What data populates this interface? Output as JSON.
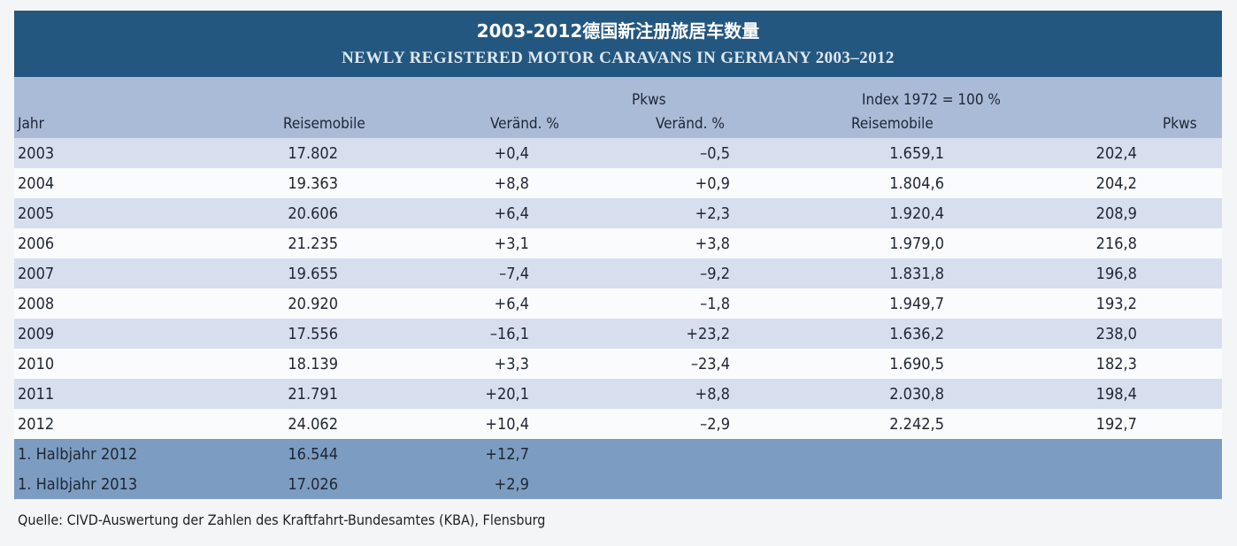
{
  "title_cn": "2003-2012德国新注册旅居车数量",
  "title_en": "NEWLY REGISTERED MOTOR CARAVANS IN GERMANY 2003–2012",
  "header": {
    "group_pkws": "Pkws",
    "group_index": "Index 1972 = 100 %",
    "col_jahr": "Jahr",
    "col_reisemobile": "Reisemobile",
    "col_verand_rm": "Veränd. %",
    "col_verand_pkws": "Veränd. %",
    "col_index_rm": "Reisemobile",
    "col_index_pkws": "Pkws"
  },
  "rows": [
    {
      "jahr": "2003",
      "reisemobile": "17.802",
      "verand_rm": "+0,4",
      "verand_pkws": "–0,5",
      "index_rm": "1.659,1",
      "index_pkws": "202,4"
    },
    {
      "jahr": "2004",
      "reisemobile": "19.363",
      "verand_rm": "+8,8",
      "verand_pkws": "+0,9",
      "index_rm": "1.804,6",
      "index_pkws": "204,2"
    },
    {
      "jahr": "2005",
      "reisemobile": "20.606",
      "verand_rm": "+6,4",
      "verand_pkws": "+2,3",
      "index_rm": "1.920,4",
      "index_pkws": "208,9"
    },
    {
      "jahr": "2006",
      "reisemobile": "21.235",
      "verand_rm": "+3,1",
      "verand_pkws": "+3,8",
      "index_rm": "1.979,0",
      "index_pkws": "216,8"
    },
    {
      "jahr": "2007",
      "reisemobile": "19.655",
      "verand_rm": "–7,4",
      "verand_pkws": "–9,2",
      "index_rm": "1.831,8",
      "index_pkws": "196,8"
    },
    {
      "jahr": "2008",
      "reisemobile": "20.920",
      "verand_rm": "+6,4",
      "verand_pkws": "–1,8",
      "index_rm": "1.949,7",
      "index_pkws": "193,2"
    },
    {
      "jahr": "2009",
      "reisemobile": "17.556",
      "verand_rm": "–16,1",
      "verand_pkws": "+23,2",
      "index_rm": "1.636,2",
      "index_pkws": "238,0"
    },
    {
      "jahr": "2010",
      "reisemobile": "18.139",
      "verand_rm": "+3,3",
      "verand_pkws": "–23,4",
      "index_rm": "1.690,5",
      "index_pkws": "182,3"
    },
    {
      "jahr": "2011",
      "reisemobile": "21.791",
      "verand_rm": "+20,1",
      "verand_pkws": "+8,8",
      "index_rm": "2.030,8",
      "index_pkws": "198,4"
    },
    {
      "jahr": "2012",
      "reisemobile": "24.062",
      "verand_rm": "+10,4",
      "verand_pkws": "–2,9",
      "index_rm": "2.242,5",
      "index_pkws": "192,7"
    }
  ],
  "half_rows": [
    {
      "jahr": "1. Halbjahr 2012",
      "reisemobile": "16.544",
      "verand_rm": "+12,7"
    },
    {
      "jahr": "1. Halbjahr 2013",
      "reisemobile": "17.026",
      "verand_rm": "+2,9"
    }
  ],
  "source": "Quelle: CIVD-Auswertung der Zahlen des Kraftfahrt-Bundesamtes (KBA), Flensburg"
}
